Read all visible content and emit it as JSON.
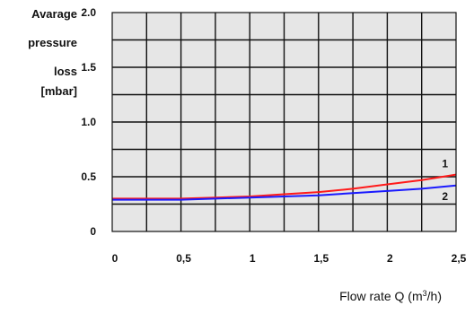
{
  "chart_data": {
    "type": "line",
    "ylabel_lines": [
      "Avarage",
      "pressure",
      "loss",
      "[mbar]"
    ],
    "xlabel": {
      "prefix": "Flow rate Q (m",
      "sup": "3",
      "suffix": "/h)"
    },
    "xlim": [
      0,
      2.5
    ],
    "ylim": [
      0,
      2.0
    ],
    "x_ticks": [
      {
        "value": 0,
        "label": "0"
      },
      {
        "value": 0.5,
        "label": "0,5"
      },
      {
        "value": 1,
        "label": "1"
      },
      {
        "value": 1.5,
        "label": "1,5"
      },
      {
        "value": 2,
        "label": "2"
      },
      {
        "value": 2.5,
        "label": "2,5"
      }
    ],
    "y_ticks": [
      {
        "value": 0,
        "label": "0"
      },
      {
        "value": 0.5,
        "label": "0.5"
      },
      {
        "value": 1.0,
        "label": "1.0"
      },
      {
        "value": 1.5,
        "label": "1.5"
      },
      {
        "value": 2.0,
        "label": "2.0"
      }
    ],
    "grid": true,
    "grid_x_step": 0.25,
    "grid_y_step": 0.25,
    "plot_background": "#e6e6e6",
    "series": [
      {
        "name": "1",
        "color": "#ff1a1a",
        "x": [
          0,
          0.25,
          0.5,
          0.75,
          1.0,
          1.25,
          1.5,
          1.75,
          2.0,
          2.25,
          2.5
        ],
        "y": [
          0.3,
          0.3,
          0.3,
          0.31,
          0.32,
          0.34,
          0.36,
          0.39,
          0.43,
          0.47,
          0.52
        ]
      },
      {
        "name": "2",
        "color": "#1a1aff",
        "x": [
          0,
          0.25,
          0.5,
          0.75,
          1.0,
          1.25,
          1.5,
          1.75,
          2.0,
          2.25,
          2.5
        ],
        "y": [
          0.29,
          0.29,
          0.29,
          0.3,
          0.31,
          0.32,
          0.33,
          0.35,
          0.37,
          0.39,
          0.42
        ]
      }
    ]
  }
}
